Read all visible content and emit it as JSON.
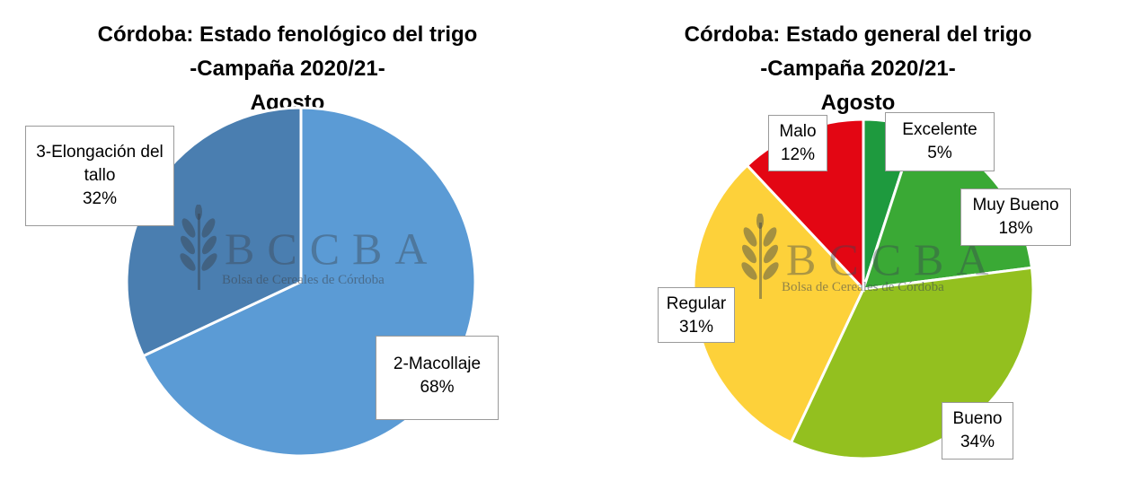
{
  "chart_data": [
    {
      "type": "pie",
      "title_lines": [
        "Córdoba: Estado fenológico del trigo",
        "-Campaña 2020/21-",
        "Agosto"
      ],
      "slices": [
        {
          "label_lines": [
            "2-Macollaje"
          ],
          "value": 68,
          "value_label": "68%",
          "color": "#5b9bd5"
        },
        {
          "label_lines": [
            "3-Elongación del",
            "tallo"
          ],
          "value": 32,
          "value_label": "32%",
          "color": "#4a7eb0"
        }
      ]
    },
    {
      "type": "pie",
      "title_lines": [
        "Córdoba: Estado general del trigo",
        "-Campaña 2020/21-",
        "Agosto"
      ],
      "slices": [
        {
          "label_lines": [
            "Excelente"
          ],
          "value": 5,
          "value_label": "5%",
          "color": "#1e9a3e"
        },
        {
          "label_lines": [
            "Muy Bueno"
          ],
          "value": 18,
          "value_label": "18%",
          "color": "#3aa935"
        },
        {
          "label_lines": [
            "Bueno"
          ],
          "value": 34,
          "value_label": "34%",
          "color": "#93c01f"
        },
        {
          "label_lines": [
            "Regular"
          ],
          "value": 31,
          "value_label": "31%",
          "color": "#fdd13a"
        },
        {
          "label_lines": [
            "Malo"
          ],
          "value": 12,
          "value_label": "12%",
          "color": "#e30613"
        }
      ]
    }
  ],
  "watermark": {
    "letters": "BCCBA",
    "subtitle": "Bolsa de Cereales de Córdoba"
  }
}
